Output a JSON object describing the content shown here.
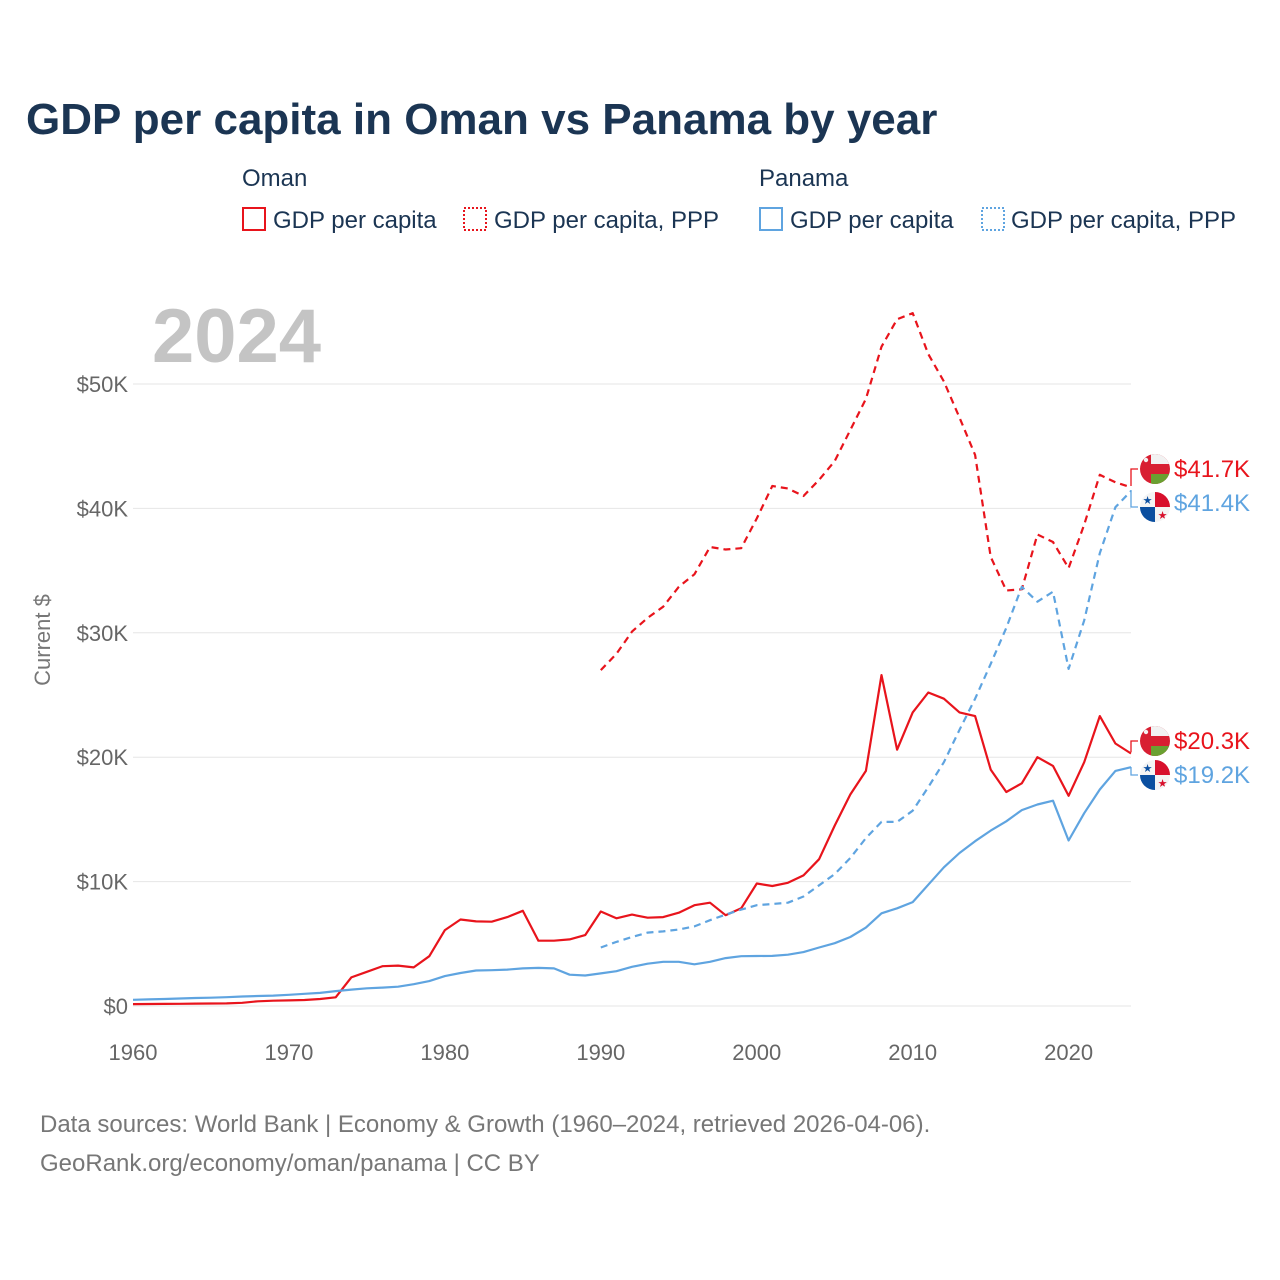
{
  "chart_data": {
    "type": "line",
    "title": "GDP per capita in Oman vs Panama by year",
    "year_label": "2024",
    "ylabel": "Current $",
    "xlabel": "",
    "xlim": [
      1960,
      2024
    ],
    "ylim": [
      0,
      55000
    ],
    "x_ticks": [
      1960,
      1970,
      1980,
      1990,
      2000,
      2010,
      2020
    ],
    "y_ticks": [
      {
        "value": 0,
        "label": "$0"
      },
      {
        "value": 10000,
        "label": "$10K"
      },
      {
        "value": 20000,
        "label": "$20K"
      },
      {
        "value": 30000,
        "label": "$30K"
      },
      {
        "value": 40000,
        "label": "$40K"
      },
      {
        "value": 50000,
        "label": "$50K"
      }
    ],
    "legend": {
      "groups": [
        {
          "name": "Oman",
          "color": "#e8141c",
          "items": [
            "GDP per capita",
            "GDP per capita, PPP"
          ]
        },
        {
          "name": "Panama",
          "color": "#5fa4e0",
          "items": [
            "GDP per capita",
            "GDP per capita, PPP"
          ]
        }
      ]
    },
    "series": [
      {
        "name": "Oman GDP per capita",
        "country": "Oman",
        "color": "#e8141c",
        "dashed": false,
        "end_label": "$20.3K",
        "start_year": 1960,
        "values": [
          150,
          160,
          170,
          180,
          190,
          200,
          210,
          260,
          380,
          430,
          450,
          480,
          560,
          700,
          2300,
          2750,
          3200,
          3250,
          3100,
          4000,
          6100,
          6950,
          6800,
          6780,
          7150,
          7650,
          5250,
          5250,
          5350,
          5700,
          7600,
          7050,
          7350,
          7100,
          7150,
          7500,
          8100,
          8300,
          7300,
          7850,
          9850,
          9650,
          9900,
          10500,
          11800,
          14500,
          17000,
          18900,
          26600,
          20600,
          23600,
          25200,
          24700,
          23600,
          23300,
          19000,
          17200,
          17900,
          20000,
          19300,
          16900,
          19600,
          23300,
          21100,
          20300
        ]
      },
      {
        "name": "Oman GDP per capita, PPP",
        "country": "Oman",
        "color": "#e8141c",
        "dashed": true,
        "end_label": "$41.7K",
        "start_year": 1990,
        "values": [
          27000,
          28300,
          30100,
          31200,
          32100,
          33700,
          34700,
          36900,
          36700,
          36800,
          39200,
          41800,
          41600,
          41000,
          42300,
          43800,
          46300,
          48800,
          53000,
          55200,
          55700,
          52400,
          50200,
          47300,
          44300,
          36100,
          33400,
          33500,
          37900,
          37300,
          35200,
          38700,
          42700,
          42100,
          41700
        ]
      },
      {
        "name": "Panama GDP per capita",
        "country": "Panama",
        "color": "#5fa4e0",
        "dashed": false,
        "end_label": "$19.2K",
        "start_year": 1960,
        "values": [
          500,
          530,
          560,
          600,
          640,
          670,
          710,
          760,
          800,
          840,
          900,
          980,
          1050,
          1200,
          1320,
          1420,
          1480,
          1550,
          1750,
          2000,
          2400,
          2650,
          2850,
          2880,
          2930,
          3020,
          3060,
          3020,
          2520,
          2450,
          2620,
          2800,
          3150,
          3400,
          3550,
          3550,
          3350,
          3550,
          3850,
          4000,
          4020,
          4030,
          4120,
          4330,
          4700,
          5050,
          5550,
          6300,
          7450,
          7850,
          8350,
          9750,
          11150,
          12300,
          13250,
          14100,
          14850,
          15750,
          16200,
          16500,
          13300,
          15500,
          17400,
          18900,
          19200
        ]
      },
      {
        "name": "Panama GDP per capita, PPP",
        "country": "Panama",
        "color": "#5fa4e0",
        "dashed": true,
        "end_label": "$41.4K",
        "start_year": 1990,
        "values": [
          4700,
          5150,
          5550,
          5900,
          6000,
          6150,
          6400,
          6900,
          7350,
          7750,
          8100,
          8200,
          8300,
          8800,
          9700,
          10600,
          11900,
          13500,
          14800,
          14800,
          15700,
          17600,
          19600,
          22200,
          24700,
          27500,
          30400,
          33700,
          32500,
          33300,
          27100,
          31000,
          36400,
          40100,
          41400
        ]
      }
    ]
  },
  "footer": {
    "line1": "Data sources: World Bank | Economy & Growth (1960–2024, retrieved 2026-04-06).",
    "line2": "GeoRank.org/economy/oman/panama | CC BY"
  }
}
